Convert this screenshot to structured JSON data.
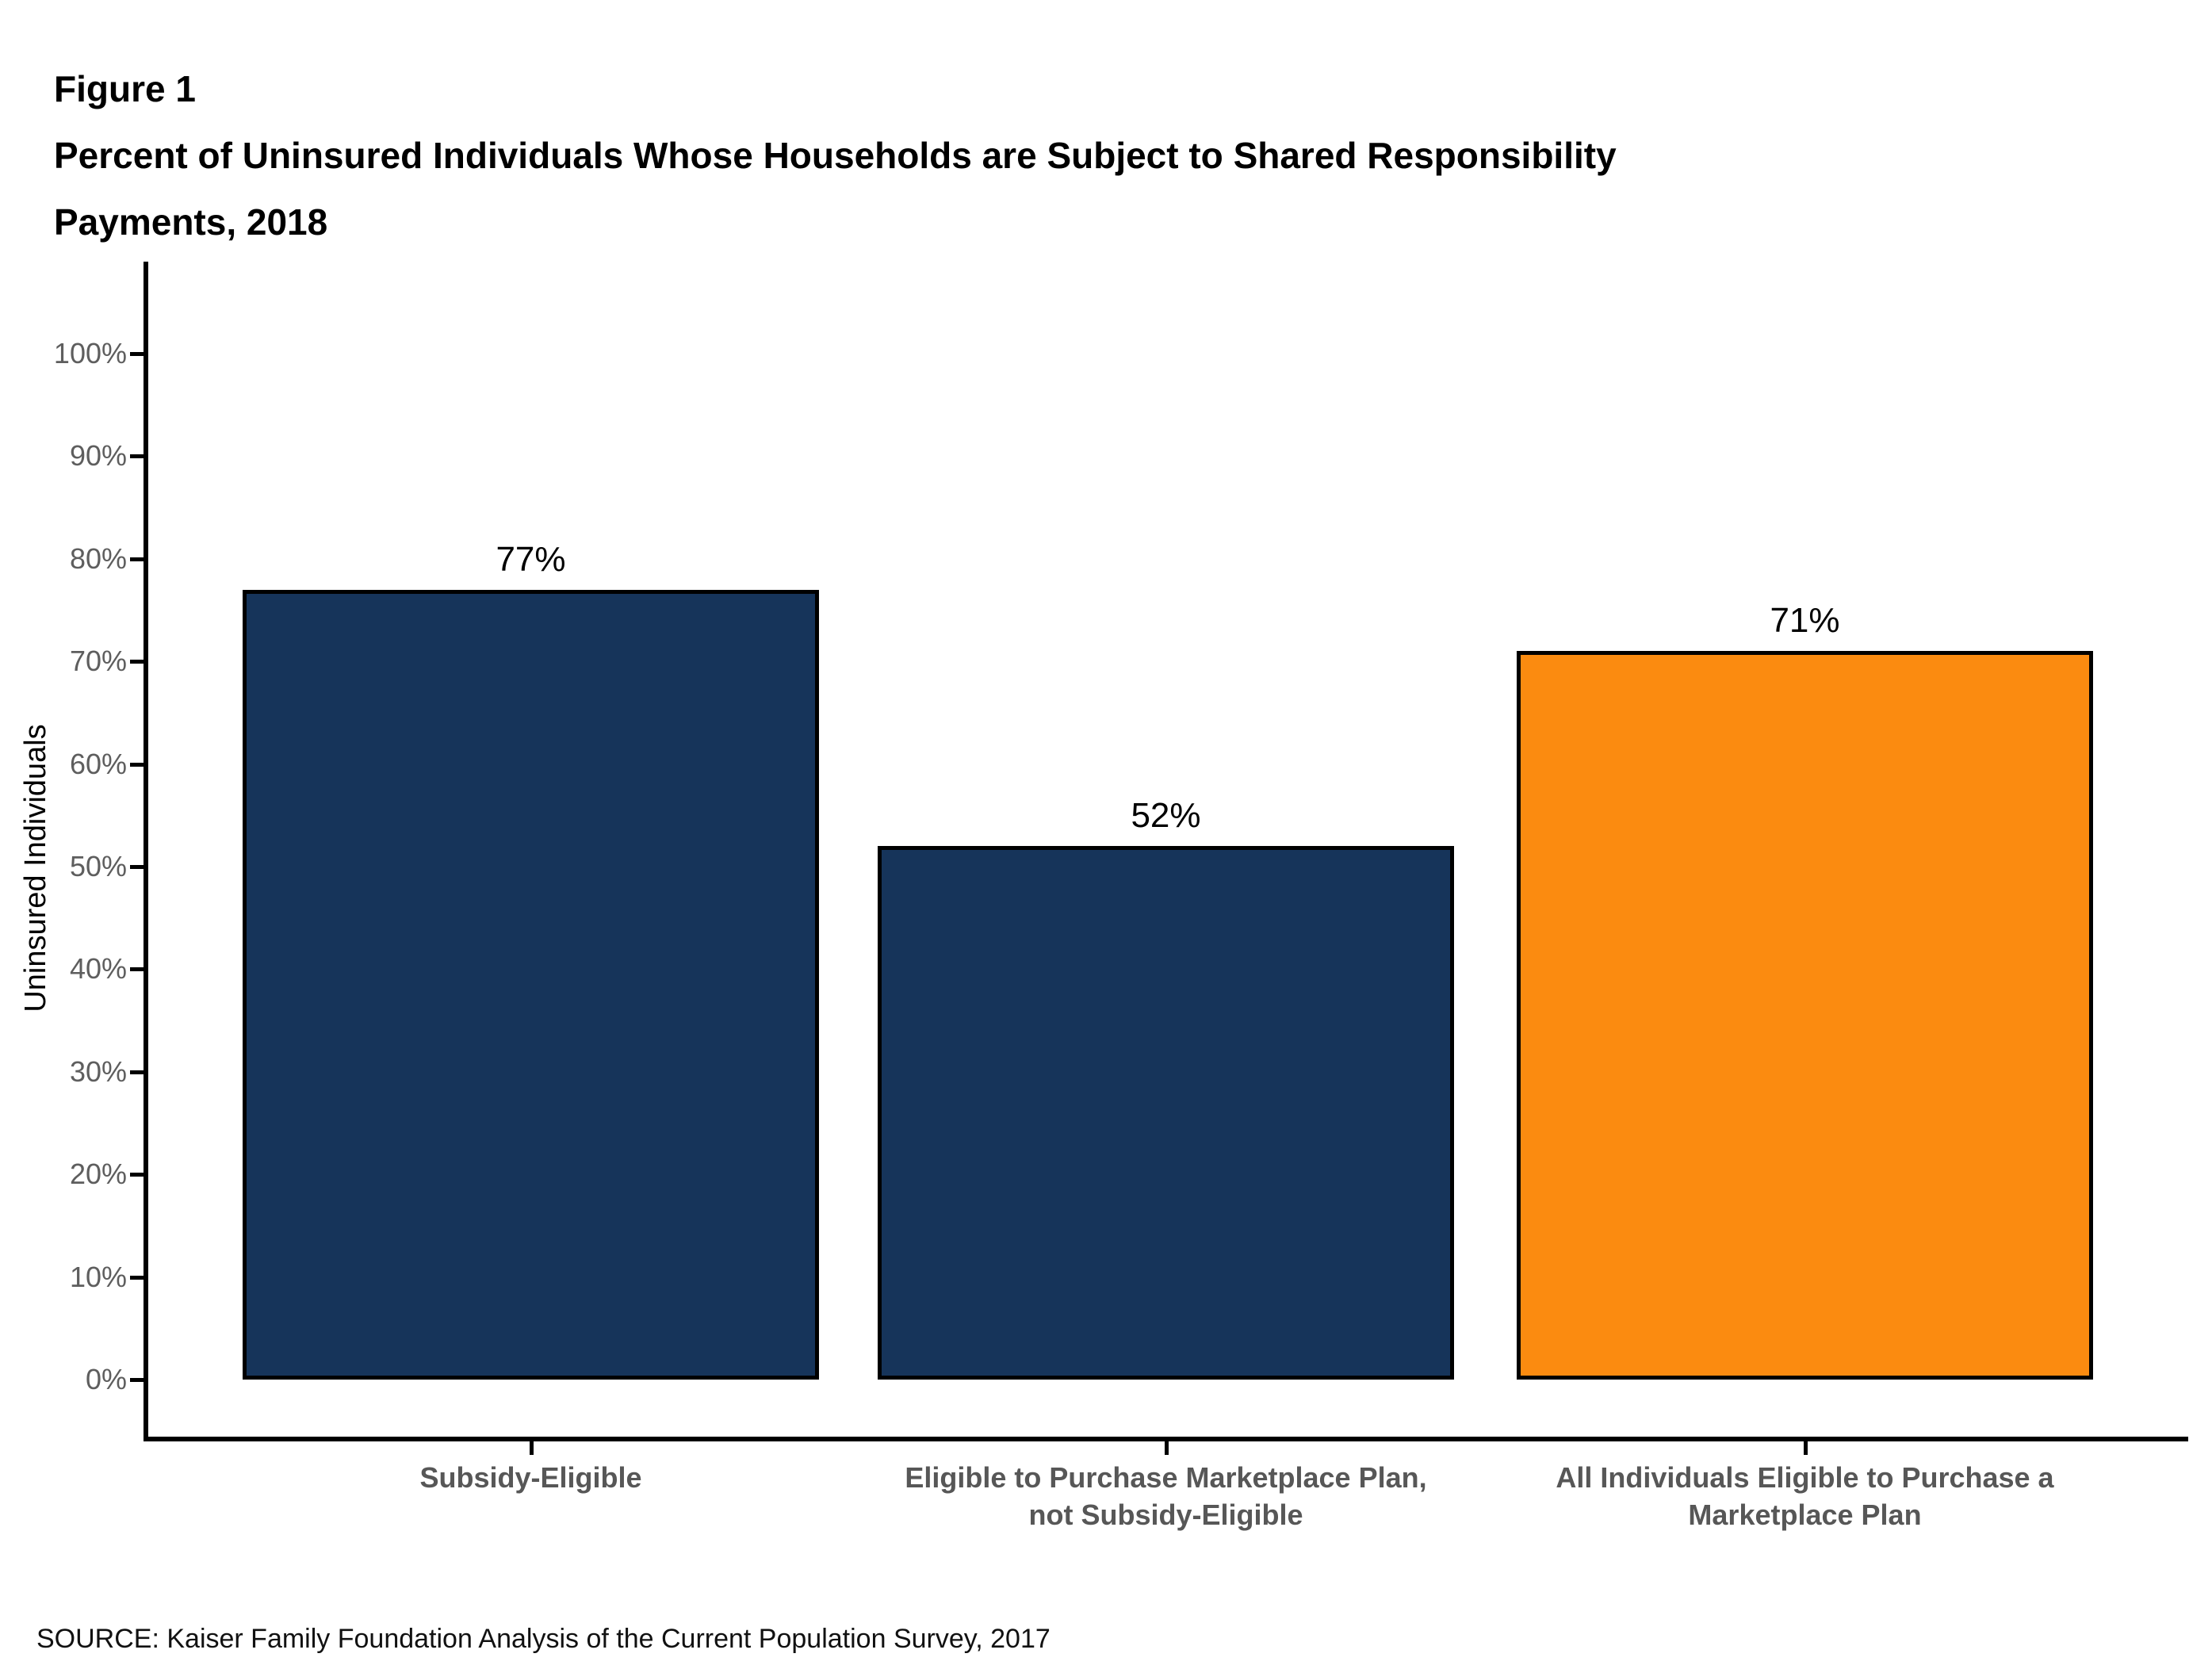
{
  "header": {
    "figure_label": "Figure 1",
    "title_line1": "Percent of Uninsured Individuals Whose Households are Subject to Shared Responsibility",
    "title_line2": "Payments, 2018"
  },
  "footer": {
    "source": "SOURCE: Kaiser Family Foundation Analysis of the Current Population Survey, 2017"
  },
  "colors": {
    "navy": "#16345A",
    "orange": "#FB8B10",
    "axis": "#000000",
    "ytick_label": "#5e5e5e",
    "category_label": "#575757",
    "background": "#ffffff"
  },
  "chart_data": {
    "type": "bar",
    "title": "Percent of Uninsured Individuals Whose Households are Subject to Shared Responsibility Payments, 2018",
    "categories": [
      "Subsidy-Eligible",
      "Eligible to Purchase Marketplace Plan,\nnot Subsidy-Eligible",
      "All Individuals Eligible to Purchase a\nMarketplace Plan"
    ],
    "values": [
      77,
      52,
      71
    ],
    "value_labels": [
      "77%",
      "52%",
      "71%"
    ],
    "bar_colors": [
      "#16345A",
      "#16345A",
      "#FB8B10"
    ],
    "xlabel": "",
    "ylabel": "Uninsured Individuals",
    "ylim": [
      0,
      100
    ],
    "ytick_step": 10,
    "ytick_labels": [
      "0%",
      "10%",
      "20%",
      "30%",
      "40%",
      "50%",
      "60%",
      "70%",
      "80%",
      "90%",
      "100%"
    ],
    "grid": false,
    "legend": null
  }
}
